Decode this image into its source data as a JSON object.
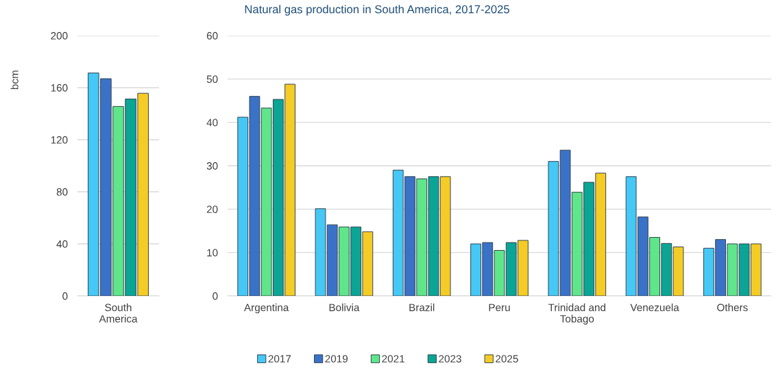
{
  "chart_data": [
    {
      "type": "bar",
      "ylabel": "bcm",
      "categories": [
        "South\nAmerica"
      ],
      "series": [
        {
          "name": "2017",
          "color": "#45c8f5",
          "values": [
            171.3
          ]
        },
        {
          "name": "2019",
          "color": "#3a72c8",
          "values": [
            166.9
          ]
        },
        {
          "name": "2021",
          "color": "#5fe58a",
          "values": [
            145.6
          ]
        },
        {
          "name": "2023",
          "color": "#0aa595",
          "values": [
            151.3
          ]
        },
        {
          "name": "2025",
          "color": "#f5cc25",
          "values": [
            155.7
          ]
        }
      ],
      "ylim": [
        0,
        200
      ],
      "yticks": [
        0,
        40,
        80,
        120,
        160,
        200
      ],
      "grid": "y",
      "legend": "bottom"
    },
    {
      "type": "bar",
      "title": "Natural gas production in South America, 2017-2025",
      "categories": [
        "Argentina",
        "Bolivia",
        "Brazil",
        "Peru",
        "Trinidad and\nTobago",
        "Venezuela",
        "Others"
      ],
      "series": [
        {
          "name": "2017",
          "color": "#45c8f5",
          "values": [
            41.2,
            20.1,
            29.0,
            12.0,
            31.0,
            27.5,
            11.0
          ]
        },
        {
          "name": "2019",
          "color": "#3a72c8",
          "values": [
            46.0,
            16.4,
            27.5,
            12.3,
            33.6,
            18.2,
            13.0
          ]
        },
        {
          "name": "2021",
          "color": "#5fe58a",
          "values": [
            43.3,
            15.9,
            27.0,
            10.5,
            23.9,
            13.5,
            12.0
          ]
        },
        {
          "name": "2023",
          "color": "#0aa595",
          "values": [
            45.3,
            15.9,
            27.5,
            12.3,
            26.2,
            12.1,
            12.0
          ]
        },
        {
          "name": "2025",
          "color": "#f5cc25",
          "values": [
            48.8,
            14.8,
            27.5,
            12.8,
            28.3,
            11.3,
            12.0
          ]
        }
      ],
      "ylim": [
        0,
        60
      ],
      "yticks": [
        0,
        10,
        20,
        30,
        40,
        50,
        60
      ],
      "grid": "y",
      "legend": "bottom"
    }
  ]
}
